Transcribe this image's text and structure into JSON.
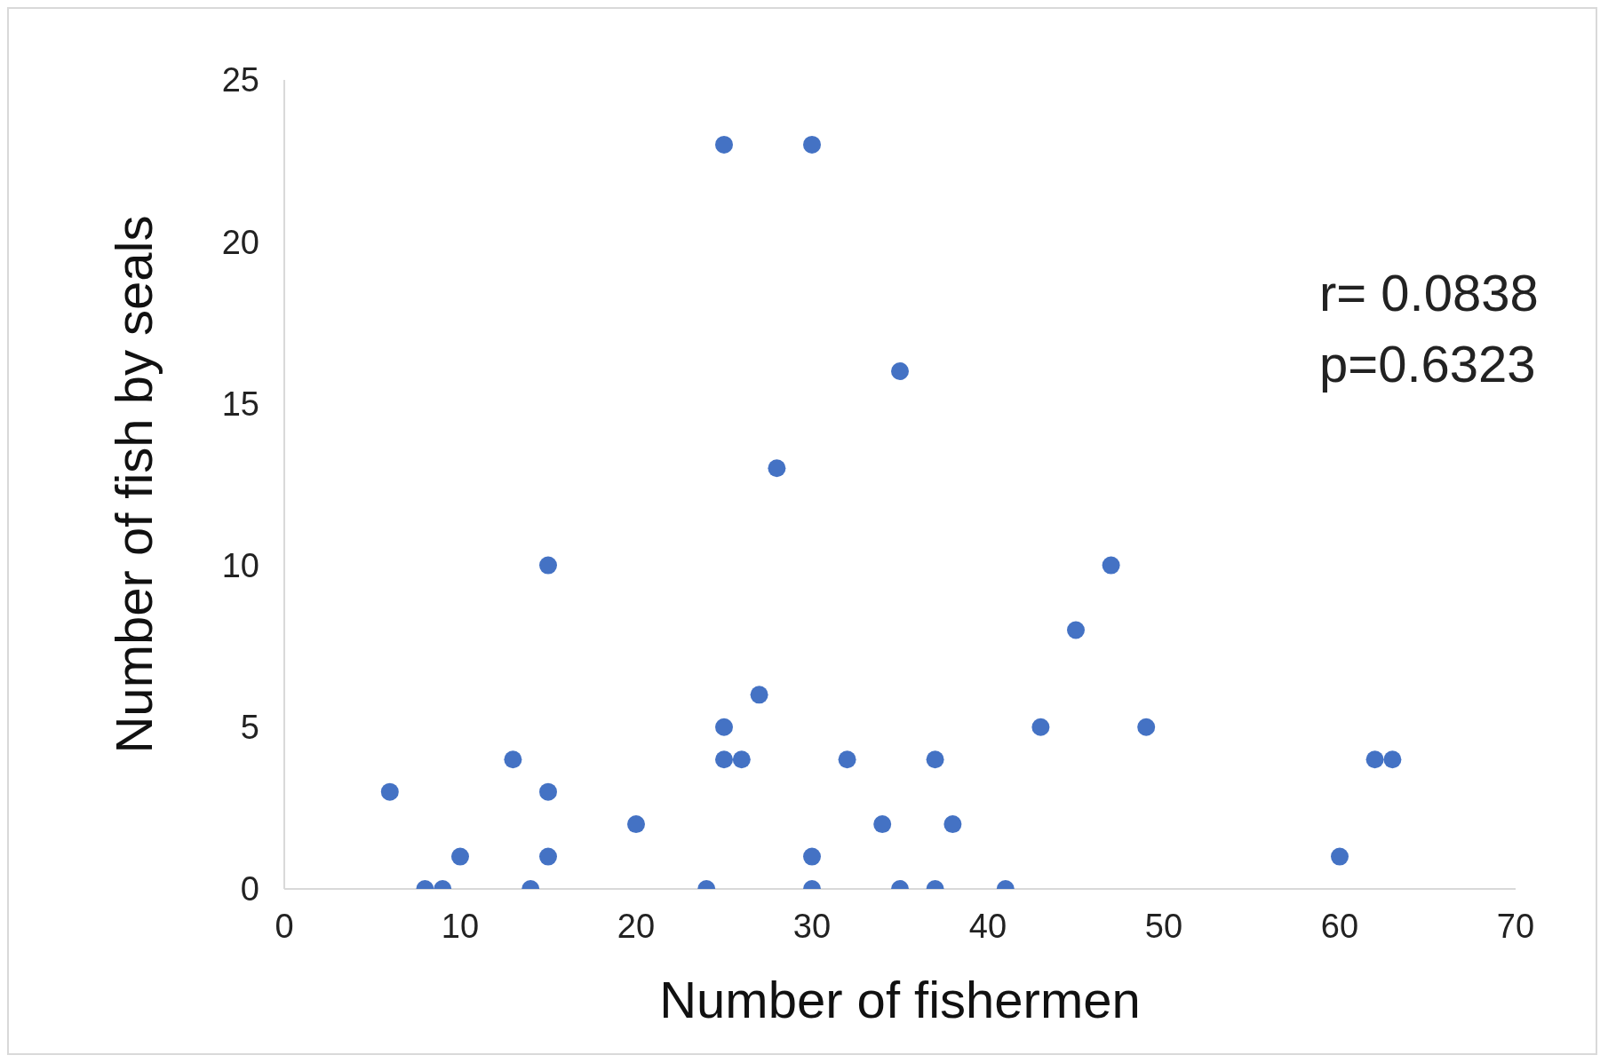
{
  "chart_data": {
    "type": "scatter",
    "xlabel": "Number of fishermen",
    "ylabel": "Number of fish by seals",
    "x": [
      6,
      8,
      9,
      10,
      13,
      14,
      15,
      15,
      15,
      20,
      24,
      25,
      25,
      25,
      26,
      27,
      28,
      30,
      30,
      30,
      32,
      34,
      35,
      35,
      37,
      37,
      38,
      41,
      43,
      45,
      47,
      49,
      60,
      62,
      63
    ],
    "series": [
      {
        "color": "#4472c4",
        "values": [
          3,
          0,
          0,
          1,
          4,
          0,
          10,
          3,
          1,
          2,
          0,
          23,
          5,
          4,
          4,
          6,
          13,
          23,
          1,
          0,
          4,
          2,
          16,
          0,
          4,
          0,
          2,
          0,
          5,
          8,
          10,
          5,
          1,
          4,
          4
        ]
      }
    ],
    "xlim": [
      0,
      70
    ],
    "xticks": [
      0,
      10,
      20,
      30,
      40,
      50,
      60,
      70
    ],
    "ylim": [
      0,
      25
    ],
    "yticks": [
      0,
      5,
      10,
      15,
      20,
      25
    ],
    "grid": false,
    "legend": false,
    "marker": "circle",
    "annotations": [
      "r= 0.0838",
      "p=0.6323"
    ]
  }
}
